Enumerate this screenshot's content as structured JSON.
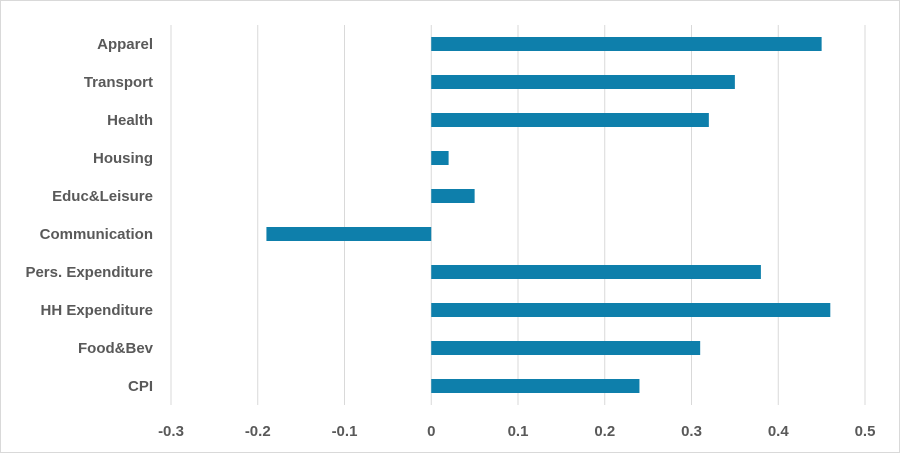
{
  "chart_data": {
    "type": "bar",
    "orientation": "horizontal",
    "title": "",
    "xlabel": "",
    "ylabel": "",
    "categories": [
      "Apparel",
      "Transport",
      "Health",
      "Housing",
      "Educ&Leisure",
      "Communication",
      "Pers. Expenditure",
      "HH Expenditure",
      "Food&Bev",
      "CPI"
    ],
    "values": [
      0.45,
      0.35,
      0.32,
      0.02,
      0.05,
      -0.19,
      0.38,
      0.46,
      0.31,
      0.24
    ],
    "xlim": [
      -0.3,
      0.5
    ],
    "x_ticks": [
      "-0.3",
      "-0.2",
      "-0.1",
      "0",
      "0.1",
      "0.2",
      "0.3",
      "0.4",
      "0.5"
    ],
    "grid": "vertical",
    "legend": "none",
    "bar_color": "#0e7fab",
    "grid_color": "#d9d9d9"
  }
}
